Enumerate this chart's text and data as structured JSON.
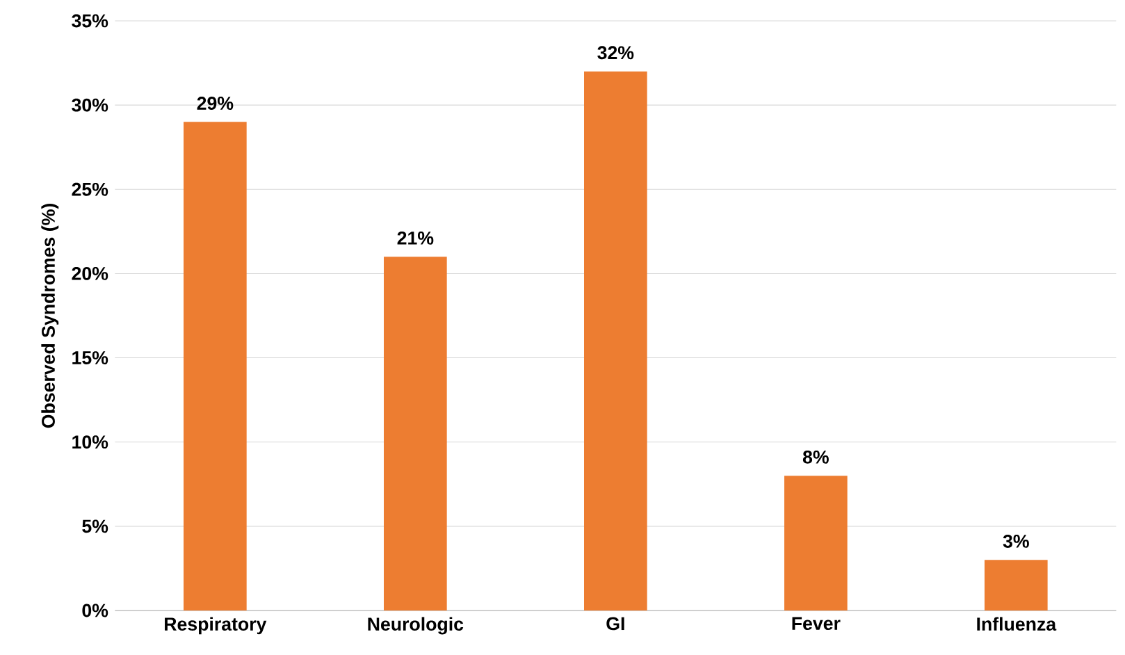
{
  "chart_data": {
    "type": "bar",
    "ylabel": "Observed Syndromes (%)",
    "categories": [
      "Respiratory",
      "Neurologic",
      "GI",
      "Fever",
      "Influenza"
    ],
    "values": [
      29,
      21,
      32,
      8,
      3
    ],
    "value_labels": [
      "29%",
      "21%",
      "32%",
      "8%",
      "3%"
    ],
    "color": "#ed7d31",
    "ylim": [
      0,
      35
    ],
    "yticks": [
      {
        "value": 0,
        "label": "0%"
      },
      {
        "value": 5,
        "label": "5%"
      },
      {
        "value": 10,
        "label": "10%"
      },
      {
        "value": 15,
        "label": "15%"
      },
      {
        "value": 20,
        "label": "20%"
      },
      {
        "value": 25,
        "label": "25%"
      },
      {
        "value": 30,
        "label": "30%"
      },
      {
        "value": 35,
        "label": "35%"
      }
    ],
    "grid": "y"
  }
}
